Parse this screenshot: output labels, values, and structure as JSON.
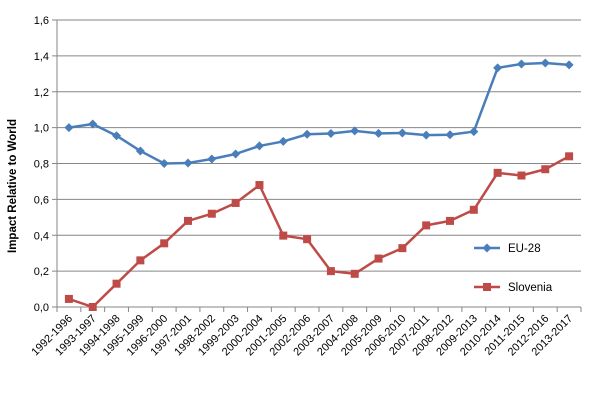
{
  "chart_data": {
    "type": "line",
    "title": "",
    "xlabel": "",
    "ylabel": "Impact Relative to World",
    "ylim": [
      0,
      1.6
    ],
    "yticks": [
      "0,0",
      "0,2",
      "0,4",
      "0,6",
      "0,8",
      "1,0",
      "1,2",
      "1,4",
      "1,6"
    ],
    "grid": true,
    "legend": "right",
    "categories": [
      "1992-1996",
      "1993-1997",
      "1994-1998",
      "1995-1999",
      "1996-2000",
      "1997-2001",
      "1998-2002",
      "1999-2003",
      "2000-2004",
      "2001-2005",
      "2002-2006",
      "2003-2007",
      "2004-2008",
      "2005-2009",
      "2006-2010",
      "2007-2011",
      "2008-2012",
      "2009-2013",
      "2010-2014",
      "2011-2015",
      "2012-2016",
      "2013-2017"
    ],
    "series": [
      {
        "name": "EU-28",
        "color": "#4a7ebb",
        "marker": "diamond",
        "values": [
          1.0,
          1.02,
          0.955,
          0.87,
          0.8,
          0.803,
          0.825,
          0.853,
          0.898,
          0.923,
          0.963,
          0.967,
          0.982,
          0.968,
          0.97,
          0.958,
          0.96,
          0.978,
          1.333,
          1.355,
          1.36,
          1.35
        ]
      },
      {
        "name": "Slovenia",
        "color": "#be4b48",
        "marker": "square",
        "values": [
          0.045,
          0.0,
          0.13,
          0.26,
          0.355,
          0.48,
          0.52,
          0.58,
          0.68,
          0.398,
          0.378,
          0.2,
          0.185,
          0.27,
          0.328,
          0.455,
          0.48,
          0.542,
          0.748,
          0.733,
          0.768,
          0.84
        ]
      }
    ]
  }
}
